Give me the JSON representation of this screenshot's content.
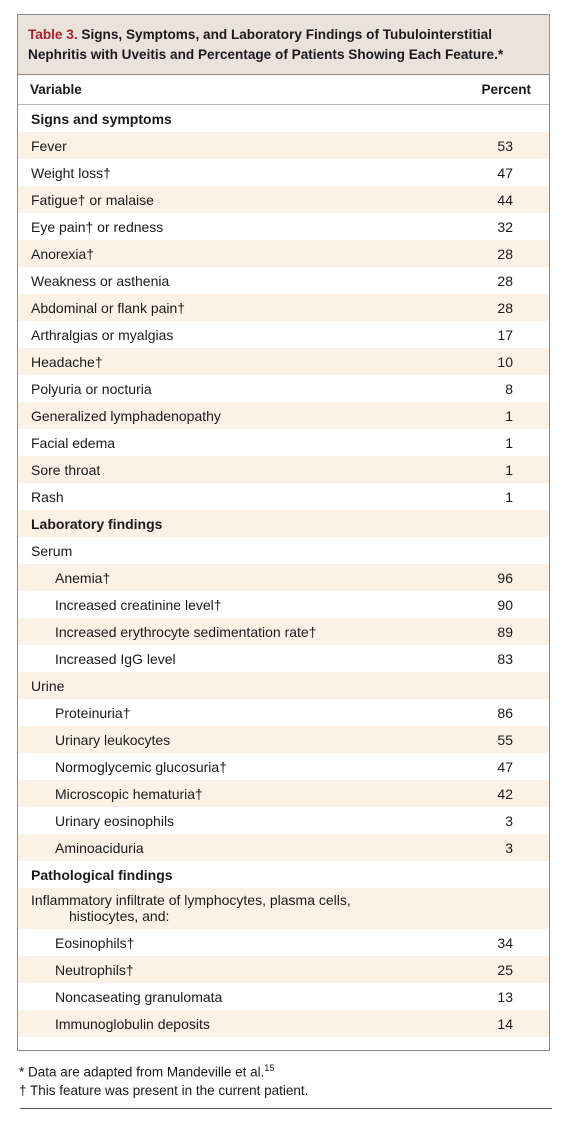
{
  "table": {
    "label": "Table 3.",
    "title_line1": "Signs, Symptoms, and Laboratory Findings of Tubulointerstitial",
    "title_line2": "Nephritis with Uveitis and Percentage of Patients Showing Each Feature.*",
    "col_variable": "Variable",
    "col_percent": "Percent",
    "rows": [
      {
        "text": "Signs and symptoms",
        "value": "",
        "kind": "section"
      },
      {
        "text": "Fever",
        "value": "53"
      },
      {
        "text": "Weight loss†",
        "value": "47"
      },
      {
        "text": "Fatigue† or malaise",
        "value": "44"
      },
      {
        "text": "Eye pain† or redness",
        "value": "32"
      },
      {
        "text": "Anorexia†",
        "value": "28"
      },
      {
        "text": "Weakness or asthenia",
        "value": "28"
      },
      {
        "text": "Abdominal or flank pain†",
        "value": "28"
      },
      {
        "text": "Arthralgias or myalgias",
        "value": "17"
      },
      {
        "text": "Headache†",
        "value": "10"
      },
      {
        "text": "Polyuria or nocturia",
        "value": "8"
      },
      {
        "text": "Generalized lymphadenopathy",
        "value": "1"
      },
      {
        "text": "Facial edema",
        "value": "1"
      },
      {
        "text": "Sore throat",
        "value": "1"
      },
      {
        "text": "Rash",
        "value": "1"
      },
      {
        "text": "Laboratory findings",
        "value": "",
        "kind": "section"
      },
      {
        "text": "Serum",
        "value": ""
      },
      {
        "text": "Anemia†",
        "value": "96",
        "indent": true
      },
      {
        "text": "Increased creatinine level†",
        "value": "90",
        "indent": true
      },
      {
        "text": "Increased erythrocyte sedimentation rate†",
        "value": "89",
        "indent": true
      },
      {
        "text": "Increased IgG level",
        "value": "83",
        "indent": true
      },
      {
        "text": "Urine",
        "value": ""
      },
      {
        "text": "Proteinuria†",
        "value": "86",
        "indent": true
      },
      {
        "text": "Urinary leukocytes",
        "value": "55",
        "indent": true
      },
      {
        "text": "Normoglycemic glucosuria†",
        "value": "47",
        "indent": true
      },
      {
        "text": "Microscopic hematuria†",
        "value": "42",
        "indent": true
      },
      {
        "text": "Urinary eosinophils",
        "value": "3",
        "indent": true
      },
      {
        "text": "Aminoaciduria",
        "value": "3",
        "indent": true
      },
      {
        "text": "Pathological findings",
        "value": "",
        "kind": "section"
      },
      {
        "text": "Inflammatory infiltrate of lymphocytes, plasma cells,",
        "text2": "histiocytes, and:",
        "value": "",
        "tall": true
      },
      {
        "text": "Eosinophils†",
        "value": "34",
        "indent": true
      },
      {
        "text": "Neutrophils†",
        "value": "25",
        "indent": true
      },
      {
        "text": "Noncaseating granulomata",
        "value": "13",
        "indent": true
      },
      {
        "text": "Immunoglobulin deposits",
        "value": "14",
        "indent": true
      }
    ]
  },
  "footnotes": {
    "line1": "* Data are adapted from Mandeville et al.",
    "ref": "15",
    "line2": "† This feature was present in the current patient."
  }
}
